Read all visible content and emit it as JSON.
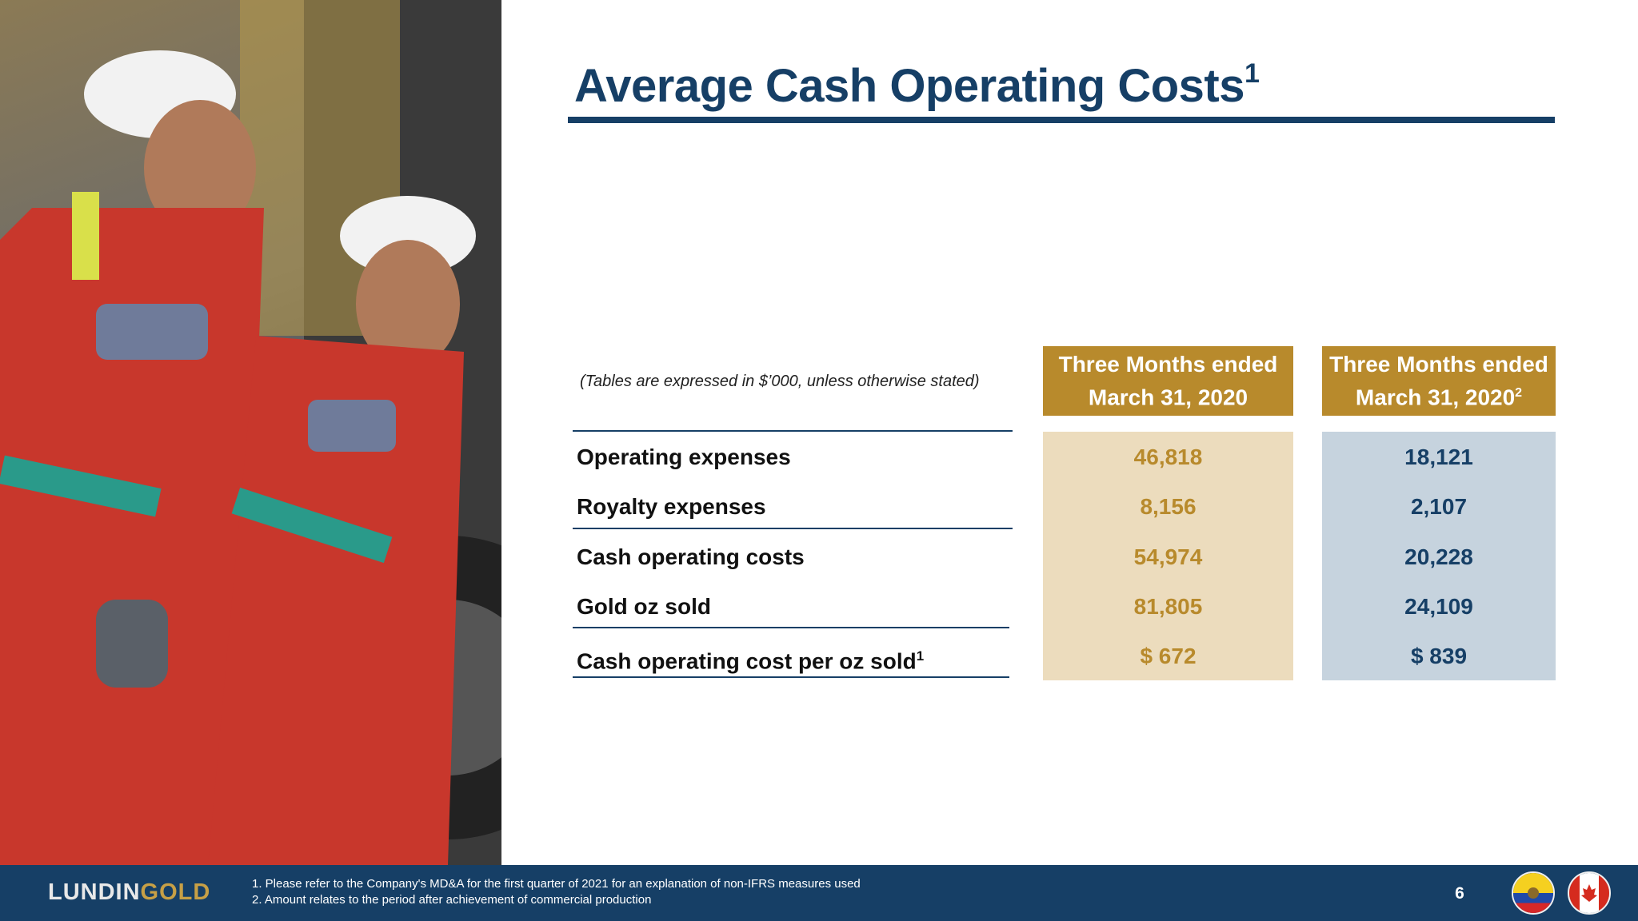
{
  "slide": {
    "title": "Average Cash Operating Costs",
    "title_sup": "1",
    "note": "(Tables are expressed in $’000, unless otherwise stated)",
    "page_number": "6"
  },
  "table": {
    "col1": {
      "line1": "Three Months ended",
      "line2": "March 31, 2020",
      "sup": ""
    },
    "col2": {
      "line1": "Three Months ended",
      "line2": "March 31, 2020",
      "sup": "2"
    },
    "rows": [
      {
        "label": "Operating expenses",
        "sup": "",
        "v1": "46,818",
        "v2": "18,121"
      },
      {
        "label": "Royalty expenses",
        "sup": "",
        "v1": "8,156",
        "v2": "2,107"
      },
      {
        "label": "Cash operating costs",
        "sup": "",
        "v1": "54,974",
        "v2": "20,228"
      },
      {
        "label": "Gold oz sold",
        "sup": "",
        "v1": "81,805",
        "v2": "24,109"
      },
      {
        "label": "Cash operating cost per oz sold",
        "sup": "1",
        "v1": "$ 672",
        "v2": "$ 839"
      }
    ]
  },
  "footer": {
    "logo_part1": "LUNDIN",
    "logo_part2": "GOLD",
    "footnote1": "1. Please refer to the Company's MD&A for the first quarter of 2021 for an explanation of non-IFRS measures used",
    "footnote2": "2. Amount relates to the period after achievement of commercial production"
  },
  "colors": {
    "navy": "#163f66",
    "gold": "#b88a2c",
    "gold_light": "#ecdcbd",
    "blue_light": "#c6d3de"
  },
  "images": {
    "photo": "two-miners-in-red-coveralls-photo",
    "flags": [
      "ecuador-flag-icon",
      "canada-flag-icon"
    ]
  }
}
